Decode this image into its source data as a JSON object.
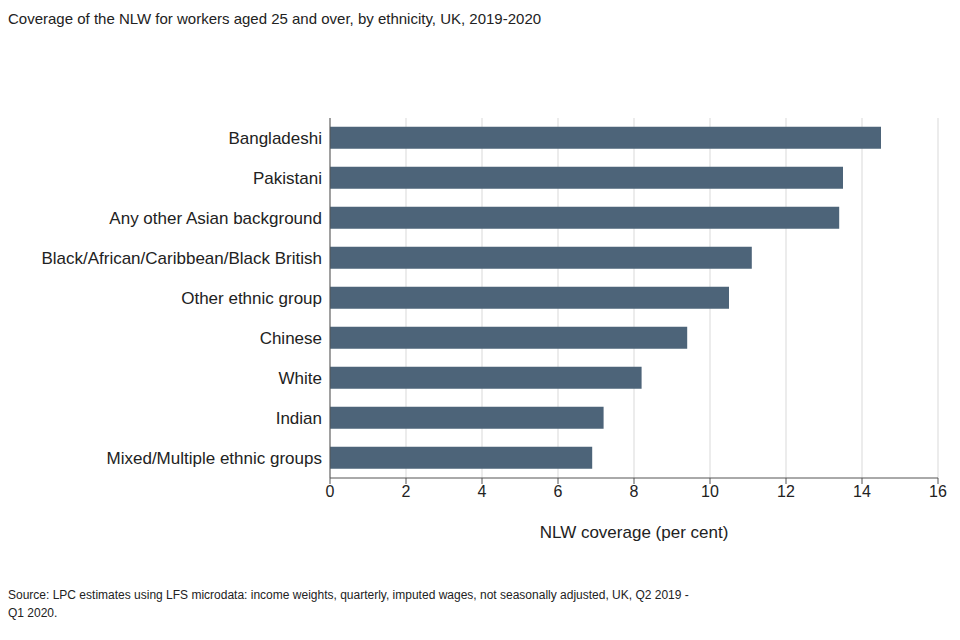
{
  "chart_data": {
    "type": "bar",
    "title": "Coverage of the NLW for workers aged 25 and over, by ethnicity, UK, 2019-2020",
    "x_label": "NLW coverage (per cent)",
    "source": "Source: LPC estimates using LFS microdata: income weights, quarterly, imputed wages, not seasonally adjusted, UK, Q2 2019 - Q1 2020.",
    "orientation": "horizontal",
    "categories": [
      "Bangladeshi",
      "Pakistani",
      "Any other Asian background",
      "Black/African/Caribbean/Black British",
      "Other ethnic group",
      "Chinese",
      "White",
      "Indian",
      "Mixed/Multiple ethnic groups"
    ],
    "values": [
      14.5,
      13.5,
      13.4,
      11.1,
      10.5,
      9.4,
      8.2,
      7.2,
      6.9
    ],
    "color": "#4d6479",
    "xlim": [
      0,
      16
    ],
    "xticks": [
      0,
      2,
      4,
      6,
      8,
      10,
      12,
      14,
      16
    ],
    "grid": true
  }
}
